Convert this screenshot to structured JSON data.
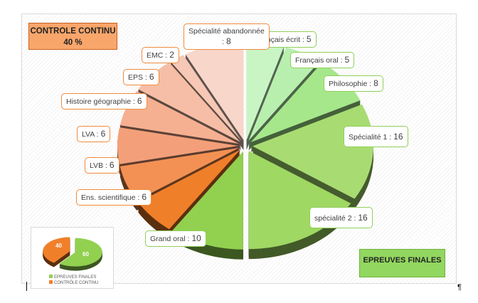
{
  "chart_data": {
    "type": "pie",
    "variant": "3d-exploded",
    "slices": [
      {
        "label": "Français écrit",
        "value": 5,
        "group": "EPREUVES FINALES",
        "color": "#c9f5c4"
      },
      {
        "label": "Français oral",
        "value": 5,
        "group": "EPREUVES FINALES",
        "color": "#b9efae"
      },
      {
        "label": "Philosophie",
        "value": 8,
        "group": "EPREUVES FINALES",
        "color": "#a6e78c"
      },
      {
        "label": "Spécialité 1",
        "value": 16,
        "group": "EPREUVES FINALES",
        "color": "#a8dc72"
      },
      {
        "label": "spécialité 2",
        "value": 16,
        "group": "EPREUVES FINALES",
        "color": "#9fd862"
      },
      {
        "label": "Grand oral",
        "value": 10,
        "group": "EPREUVES FINALES",
        "color": "#92d050"
      },
      {
        "label": "Ens. scientifique",
        "value": 6,
        "group": "CONTROLE CONTINU",
        "color": "#f07f2a"
      },
      {
        "label": "LVB",
        "value": 6,
        "group": "CONTROLE CONTINU",
        "color": "#f39154"
      },
      {
        "label": "LVA",
        "value": 6,
        "group": "CONTROLE CONTINU",
        "color": "#f3a07a"
      },
      {
        "label": "Histoire géographie",
        "value": 6,
        "group": "CONTROLE CONTINU",
        "color": "#f5b092"
      },
      {
        "label": "EPS",
        "value": 6,
        "group": "CONTROLE CONTINU",
        "color": "#f6bea6"
      },
      {
        "label": "EMC",
        "value": 2,
        "group": "CONTROLE CONTINU",
        "color": "#f7c8b5"
      },
      {
        "label": "Spécialité abandonnée",
        "value": 8,
        "group": "CONTROLE CONTINU",
        "color": "#f8d6ca"
      }
    ],
    "annotations": {
      "controle_continu": "CONTROLE CONTINU",
      "controle_pct": "40 %",
      "epreuves_finales": "EPREUVES FINALES"
    },
    "inset": {
      "type": "pie",
      "slices": [
        {
          "label": "EPREUVES FINALES",
          "value": 60,
          "color": "#92d050"
        },
        {
          "label": "CONTRÔLE CONTINU",
          "value": 40,
          "color": "#f07f2a"
        }
      ]
    }
  },
  "doc": {
    "pilcrow": "¶"
  }
}
